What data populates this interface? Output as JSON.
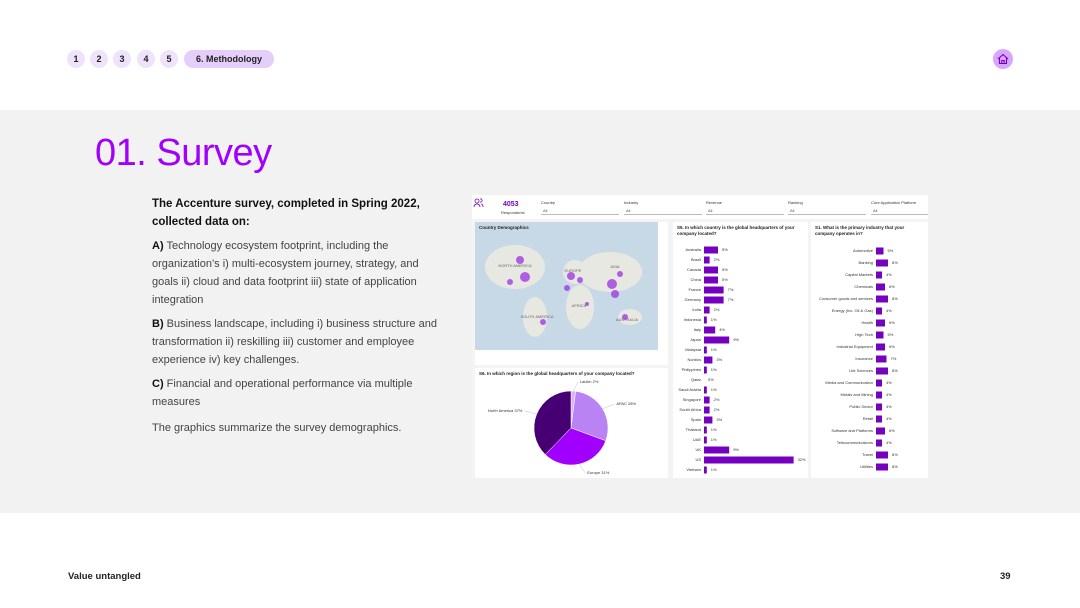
{
  "nav": {
    "items": [
      "1",
      "2",
      "3",
      "4",
      "5"
    ],
    "active": "6. Methodology"
  },
  "title": "01. Survey",
  "intro": "The Accenture survey, completed in Spring 2022, collected data on:",
  "points": [
    {
      "key": "A)",
      "text": "Technology ecosystem footprint, including the organization’s i) multi-ecosystem journey, strategy, and goals ii) cloud and data footprint iii) state of application integration"
    },
    {
      "key": "B)",
      "text": "Business landscape, including i) business structure and transformation ii) reskilling iii) customer and employee experience iv) key challenges."
    },
    {
      "key": "C)",
      "text": "Financial and operational performance via multiple measures"
    }
  ],
  "closing": "The graphics summarize the survey demographics.",
  "dashboard": {
    "respondents": {
      "count": "4053",
      "label": "Respondents"
    },
    "filters": [
      {
        "name": "Country",
        "value": "All"
      },
      {
        "name": "Industry",
        "value": "All"
      },
      {
        "name": "Revenue",
        "value": "All"
      },
      {
        "name": "Ranking",
        "value": "All"
      },
      {
        "name": "Core Application Platform",
        "value": "All"
      }
    ],
    "map": {
      "title": "Country Demographics",
      "regions": [
        "NORTH AMERICA",
        "EUROPE",
        "ASIA",
        "AFRICA",
        "SOUTH AMERICA",
        "AUSTRALIA"
      ]
    },
    "country_chart": {
      "type": "bar",
      "title": "S5. In which country is the global headquarters of your company located?",
      "color": "#7500c0",
      "categories": [
        "Australia",
        "Brazil",
        "Canada",
        "China",
        "France",
        "Germany",
        "India",
        "Indonesia",
        "Italy",
        "Japan",
        "Malaysia",
        "Nordics",
        "Philippines",
        "Qatar",
        "Saudi Arabia",
        "Singapore",
        "South Africa",
        "Spain",
        "Thailand",
        "UAE",
        "UK",
        "US",
        "Vietnam"
      ],
      "values": [
        5,
        2,
        5,
        5,
        7,
        7,
        2,
        1,
        4,
        9,
        1,
        3,
        1,
        0,
        1,
        2,
        2,
        3,
        1,
        1,
        9,
        32,
        1
      ],
      "value_labels": [
        "5%",
        "2%",
        "5%",
        "5%",
        "7%",
        "7%",
        "2%",
        "1%",
        "4%",
        "9%",
        "1%",
        "3%",
        "1%",
        "0%",
        "1%",
        "2%",
        "2%",
        "3%",
        "1%",
        "1%",
        "9%",
        "32%",
        "1%"
      ]
    },
    "region_chart": {
      "type": "pie",
      "title": "S6. In which region is the global headquarters of your company located?",
      "labels": [
        "LatAm 2%",
        "APAC 28%",
        "Europe 31%",
        "North America 37%"
      ],
      "values": [
        2,
        28,
        31,
        37
      ],
      "colors": [
        "#d9b3ff",
        "#b983f4",
        "#a100ff",
        "#460073"
      ]
    },
    "industry_chart": {
      "type": "bar",
      "title": "S1. What is the primary industry that your company operates in?",
      "color": "#7500c0",
      "categories": [
        "Automotive",
        "Banking",
        "Capital Markets",
        "Chemicals",
        "Consumer goods and services",
        "Energy (Inc. Oil & Gas)",
        "Health",
        "High Tech",
        "Industrial Equipment",
        "Insurance",
        "Life Sciences",
        "Media and Communication",
        "Metals and Mining",
        "Public Sector",
        "Retail",
        "Software and Platforms",
        "Telecommunications",
        "Travel",
        "Utilities"
      ],
      "values": [
        5,
        8,
        4,
        6,
        8,
        4,
        6,
        5,
        6,
        7,
        8,
        4,
        4,
        4,
        4,
        6,
        4,
        8,
        8
      ],
      "value_labels": [
        "5%",
        "8%",
        "4%",
        "6%",
        "8%",
        "4%",
        "6%",
        "5%",
        "6%",
        "7%",
        "8%",
        "4%",
        "4%",
        "4%",
        "4%",
        "6%",
        "4%",
        "8%",
        "8%"
      ]
    }
  },
  "footer": {
    "left": "Value untangled",
    "page": "39"
  }
}
